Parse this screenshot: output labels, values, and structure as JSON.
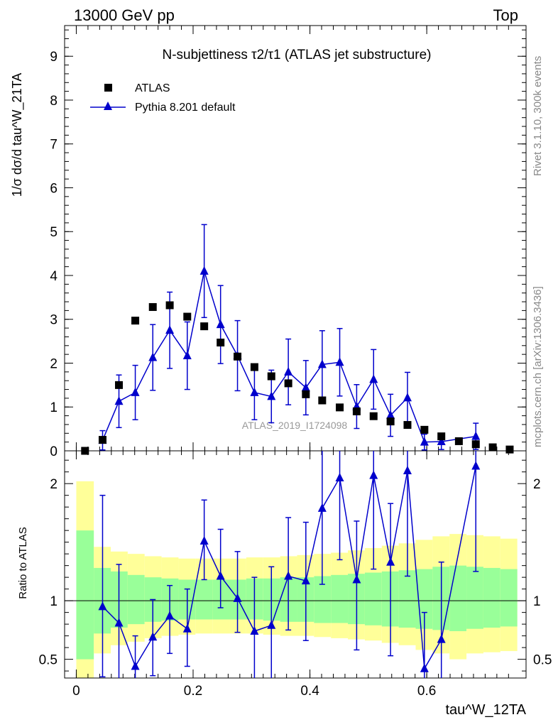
{
  "header": {
    "energy": "13000 GeV pp",
    "process": "Top"
  },
  "side_labels": {
    "rivet": "Rivet 3.1.10,  300k events",
    "mcplots": "mcplots.cern.ch [arXiv:1306.3436]"
  },
  "watermark": "ATLAS_2019_I1724098",
  "colors": {
    "atlas": "#000000",
    "pythia": "#0000cc",
    "band_inner": "#99ff99",
    "band_outer": "#ffff99"
  },
  "chart_data": [
    {
      "type": "scatter",
      "title": "N-subjettiness τ2/τ1 (ATLAS jet substructure)",
      "ylabel": "1/σ dσ/d tau^W_21TA",
      "xlim": [
        -0.02,
        0.77
      ],
      "ylim": [
        0,
        9.7
      ],
      "yticks": [
        0,
        1,
        2,
        3,
        4,
        5,
        6,
        7,
        8,
        9
      ],
      "legend": {
        "placement": "top-left",
        "entries": [
          "ATLAS",
          "Pythia 8.201 default"
        ]
      },
      "series": [
        {
          "name": "ATLAS",
          "marker": "square",
          "x": [
            0.015,
            0.045,
            0.073,
            0.101,
            0.131,
            0.16,
            0.19,
            0.219,
            0.247,
            0.276,
            0.305,
            0.334,
            0.363,
            0.393,
            0.421,
            0.451,
            0.48,
            0.509,
            0.538,
            0.567,
            0.596,
            0.625,
            0.655,
            0.684,
            0.713,
            0.742
          ],
          "y": [
            0.0,
            0.25,
            1.5,
            2.97,
            3.28,
            3.32,
            3.06,
            2.84,
            2.47,
            2.15,
            1.91,
            1.7,
            1.54,
            1.29,
            1.15,
            0.99,
            0.9,
            0.79,
            0.67,
            0.59,
            0.48,
            0.33,
            0.22,
            0.15,
            0.08,
            0.03
          ]
        },
        {
          "name": "Pythia 8.201 default",
          "marker": "triangle",
          "x": [
            0.045,
            0.073,
            0.101,
            0.131,
            0.16,
            0.19,
            0.219,
            0.247,
            0.276,
            0.305,
            0.334,
            0.363,
            0.393,
            0.421,
            0.451,
            0.48,
            0.509,
            0.538,
            0.567,
            0.596,
            0.625,
            0.684
          ],
          "y": [
            0.24,
            1.13,
            1.33,
            2.13,
            2.75,
            2.17,
            4.1,
            2.88,
            2.17,
            1.33,
            1.24,
            1.8,
            1.44,
            1.97,
            2.02,
            1.01,
            1.63,
            0.81,
            1.21,
            0.2,
            0.21,
            0.33
          ],
          "err": [
            0.22,
            0.6,
            0.62,
            0.75,
            0.87,
            0.77,
            1.06,
            0.89,
            0.8,
            0.62,
            0.6,
            0.75,
            0.62,
            0.77,
            0.77,
            0.5,
            0.68,
            0.48,
            0.58,
            0.18,
            0.18,
            0.3
          ]
        }
      ]
    },
    {
      "type": "line",
      "ylabel": "Ratio to ATLAS",
      "xlabel": "tau^W_12TA",
      "xlim": [
        -0.02,
        0.77
      ],
      "ylim": [
        0.34,
        2.28
      ],
      "yticks": [
        0.5,
        1,
        2
      ],
      "xticks": [
        0,
        0.2,
        0.4,
        0.6
      ],
      "reference": 1,
      "bands": [
        {
          "x0": 0.0,
          "x1": 0.03,
          "outer_lo": 0.3,
          "outer_hi": 2.02,
          "inner_lo": 0.5,
          "inner_hi": 1.6
        },
        {
          "x0": 0.03,
          "x1": 0.059,
          "outer_lo": 0.55,
          "outer_hi": 1.46,
          "inner_lo": 0.72,
          "inner_hi": 1.28
        },
        {
          "x0": 0.059,
          "x1": 0.088,
          "outer_lo": 0.62,
          "outer_hi": 1.42,
          "inner_lo": 0.77,
          "inner_hi": 1.25
        },
        {
          "x0": 0.088,
          "x1": 0.117,
          "outer_lo": 0.65,
          "outer_hi": 1.4,
          "inner_lo": 0.8,
          "inner_hi": 1.22
        },
        {
          "x0": 0.117,
          "x1": 0.146,
          "outer_lo": 0.68,
          "outer_hi": 1.38,
          "inner_lo": 0.82,
          "inner_hi": 1.2
        },
        {
          "x0": 0.146,
          "x1": 0.175,
          "outer_lo": 0.7,
          "outer_hi": 1.37,
          "inner_lo": 0.83,
          "inner_hi": 1.19
        },
        {
          "x0": 0.175,
          "x1": 0.204,
          "outer_lo": 0.71,
          "outer_hi": 1.36,
          "inner_lo": 0.84,
          "inner_hi": 1.18
        },
        {
          "x0": 0.204,
          "x1": 0.233,
          "outer_lo": 0.72,
          "outer_hi": 1.36,
          "inner_lo": 0.84,
          "inner_hi": 1.18
        },
        {
          "x0": 0.233,
          "x1": 0.262,
          "outer_lo": 0.72,
          "outer_hi": 1.36,
          "inner_lo": 0.84,
          "inner_hi": 1.18
        },
        {
          "x0": 0.262,
          "x1": 0.291,
          "outer_lo": 0.72,
          "outer_hi": 1.36,
          "inner_lo": 0.84,
          "inner_hi": 1.18
        },
        {
          "x0": 0.291,
          "x1": 0.32,
          "outer_lo": 0.72,
          "outer_hi": 1.37,
          "inner_lo": 0.84,
          "inner_hi": 1.19
        },
        {
          "x0": 0.32,
          "x1": 0.349,
          "outer_lo": 0.71,
          "outer_hi": 1.37,
          "inner_lo": 0.83,
          "inner_hi": 1.19
        },
        {
          "x0": 0.349,
          "x1": 0.378,
          "outer_lo": 0.7,
          "outer_hi": 1.38,
          "inner_lo": 0.82,
          "inner_hi": 1.2
        },
        {
          "x0": 0.378,
          "x1": 0.407,
          "outer_lo": 0.7,
          "outer_hi": 1.39,
          "inner_lo": 0.82,
          "inner_hi": 1.2
        },
        {
          "x0": 0.407,
          "x1": 0.436,
          "outer_lo": 0.69,
          "outer_hi": 1.4,
          "inner_lo": 0.81,
          "inner_hi": 1.21
        },
        {
          "x0": 0.436,
          "x1": 0.465,
          "outer_lo": 0.68,
          "outer_hi": 1.41,
          "inner_lo": 0.81,
          "inner_hi": 1.22
        },
        {
          "x0": 0.465,
          "x1": 0.494,
          "outer_lo": 0.67,
          "outer_hi": 1.43,
          "inner_lo": 0.8,
          "inner_hi": 1.23
        },
        {
          "x0": 0.494,
          "x1": 0.523,
          "outer_lo": 0.66,
          "outer_hi": 1.45,
          "inner_lo": 0.79,
          "inner_hi": 1.24
        },
        {
          "x0": 0.523,
          "x1": 0.552,
          "outer_lo": 0.64,
          "outer_hi": 1.47,
          "inner_lo": 0.78,
          "inner_hi": 1.25
        },
        {
          "x0": 0.552,
          "x1": 0.581,
          "outer_lo": 0.62,
          "outer_hi": 1.49,
          "inner_lo": 0.77,
          "inner_hi": 1.26
        },
        {
          "x0": 0.581,
          "x1": 0.61,
          "outer_lo": 0.58,
          "outer_hi": 1.52,
          "inner_lo": 0.76,
          "inner_hi": 1.27
        },
        {
          "x0": 0.61,
          "x1": 0.639,
          "outer_lo": 0.55,
          "outer_hi": 1.55,
          "inner_lo": 0.75,
          "inner_hi": 1.29
        },
        {
          "x0": 0.639,
          "x1": 0.668,
          "outer_lo": 0.5,
          "outer_hi": 1.57,
          "inner_lo": 0.74,
          "inner_hi": 1.3
        },
        {
          "x0": 0.668,
          "x1": 0.697,
          "outer_lo": 0.55,
          "outer_hi": 1.56,
          "inner_lo": 0.76,
          "inner_hi": 1.29
        },
        {
          "x0": 0.697,
          "x1": 0.726,
          "outer_lo": 0.56,
          "outer_hi": 1.55,
          "inner_lo": 0.77,
          "inner_hi": 1.28
        },
        {
          "x0": 0.726,
          "x1": 0.755,
          "outer_lo": 0.57,
          "outer_hi": 1.53,
          "inner_lo": 0.78,
          "inner_hi": 1.27
        }
      ],
      "series": [
        {
          "name": "Pythia 8.201 default",
          "x": [
            0.045,
            0.073,
            0.101,
            0.131,
            0.16,
            0.19,
            0.219,
            0.247,
            0.276,
            0.305,
            0.334,
            0.363,
            0.393,
            0.421,
            0.451,
            0.48,
            0.509,
            0.538,
            0.567,
            0.596,
            0.625,
            0.684
          ],
          "y": [
            0.95,
            0.81,
            0.44,
            0.69,
            0.87,
            0.76,
            1.51,
            1.21,
            1.02,
            0.74,
            0.79,
            1.21,
            1.17,
            1.79,
            2.05,
            1.18,
            2.07,
            1.33,
            2.11,
            0.42,
            0.67,
            2.15
          ],
          "err_lo": [
            0.6,
            0.55,
            0.27,
            0.33,
            0.32,
            0.32,
            0.33,
            0.27,
            0.29,
            0.42,
            0.5,
            0.46,
            0.51,
            0.65,
            0.7,
            0.6,
            0.8,
            0.8,
            0.9,
            0.3,
            0.5,
            0.9
          ],
          "err_hi": [
            0.95,
            0.5,
            0.26,
            0.32,
            0.26,
            0.34,
            0.35,
            0.4,
            0.4,
            0.46,
            0.5,
            0.5,
            0.5,
            0.5,
            0.5,
            0.5,
            0.5,
            0.5,
            0.5,
            0.48,
            0.66,
            0.5
          ]
        }
      ]
    }
  ]
}
